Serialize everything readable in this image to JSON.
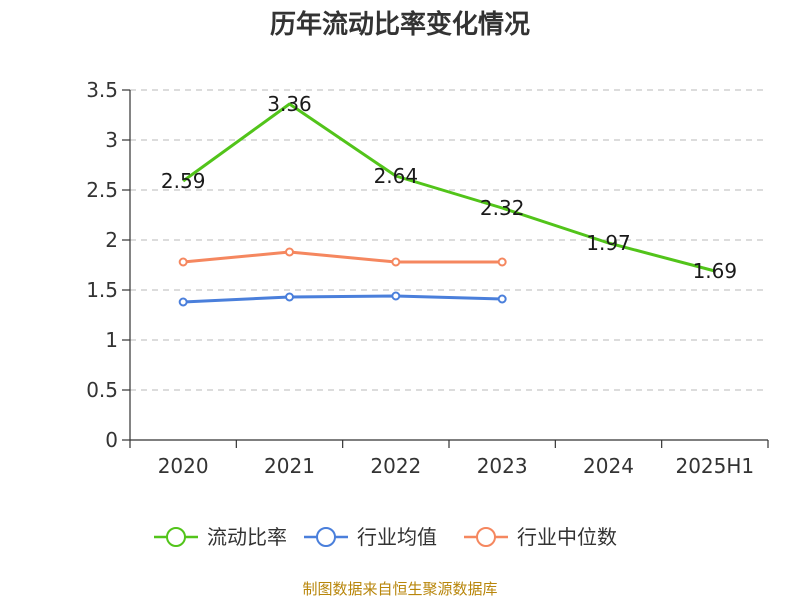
{
  "chart_data": {
    "type": "line",
    "title": "历年流动比率变化情况",
    "categories": [
      "2020",
      "2021",
      "2022",
      "2023",
      "2024",
      "2025H1"
    ],
    "ylim": [
      0,
      3.5
    ],
    "yticks": [
      "0",
      "0.5",
      "1",
      "1.5",
      "2",
      "2.5",
      "3",
      "3.5"
    ],
    "grid": true,
    "legend_position": "bottom",
    "series": [
      {
        "name": "流动比率",
        "color": "#52c41a",
        "values": [
          2.59,
          3.36,
          2.64,
          2.32,
          1.97,
          1.69
        ],
        "labels": [
          "2.59",
          "3.36",
          "2.64",
          "2.32",
          "1.97",
          "1.69"
        ],
        "show_labels": true,
        "markers": false
      },
      {
        "name": "行业均值",
        "color": "#4a7fdb",
        "values": [
          1.38,
          1.43,
          1.44,
          1.41,
          null,
          null
        ],
        "show_labels": false,
        "markers": true
      },
      {
        "name": "行业中位数",
        "color": "#f5875f",
        "values": [
          1.78,
          1.88,
          1.78,
          1.78,
          null,
          null
        ],
        "show_labels": false,
        "markers": true
      }
    ]
  },
  "source_note": "制图数据来自恒生聚源数据库"
}
